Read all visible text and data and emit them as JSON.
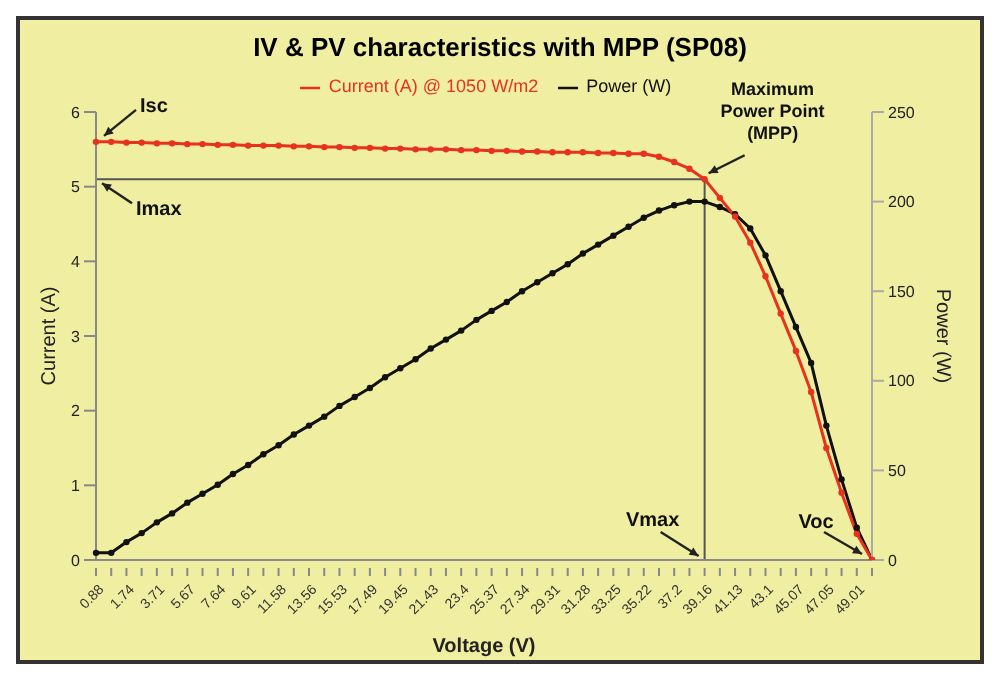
{
  "chart_data": {
    "type": "line",
    "title": "IV & PV characteristics with MPP (SP08)",
    "xlabel": "Voltage (V)",
    "ylabel": "Current (A)",
    "y2label": "Power (W)",
    "categories": [
      "0.88",
      null,
      "1.74",
      null,
      "3.71",
      null,
      "5.67",
      null,
      "7.64",
      null,
      "9.61",
      null,
      "11.58",
      null,
      "13.56",
      null,
      "15.53",
      null,
      "17.49",
      null,
      "19.45",
      null,
      "21.43",
      null,
      "23.4",
      null,
      "25.37",
      null,
      "27.34",
      null,
      "29.31",
      null,
      "31.28",
      null,
      "33.25",
      null,
      "35.22",
      null,
      "37.2",
      null,
      "39.16",
      null,
      "41.13",
      null,
      "43.1",
      null,
      "45.07",
      null,
      "47.05",
      null,
      "49.01",
      null
    ],
    "series": [
      {
        "name": "Current (A) @ 1050 W/m2",
        "color": "#e8321e",
        "values": [
          5.6,
          5.6,
          5.59,
          5.59,
          5.58,
          5.58,
          5.57,
          5.57,
          5.56,
          5.56,
          5.55,
          5.55,
          5.55,
          5.54,
          5.54,
          5.53,
          5.53,
          5.52,
          5.52,
          5.51,
          5.51,
          5.5,
          5.5,
          5.5,
          5.49,
          5.49,
          5.48,
          5.48,
          5.47,
          5.47,
          5.46,
          5.46,
          5.46,
          5.45,
          5.45,
          5.44,
          5.44,
          5.4,
          5.33,
          5.24,
          5.1,
          4.85,
          4.6,
          4.25,
          3.8,
          3.3,
          2.8,
          2.25,
          1.5,
          0.9,
          0.35,
          0
        ]
      },
      {
        "name": "Power (W)",
        "color": "#111111",
        "axis": "y2",
        "values": [
          4,
          4,
          10,
          15,
          21,
          26,
          32,
          37,
          42,
          48,
          53,
          59,
          64,
          70,
          75,
          80,
          86,
          91,
          96,
          102,
          107,
          112,
          118,
          123,
          128,
          134,
          139,
          144,
          150,
          155,
          160,
          165,
          171,
          176,
          181,
          186,
          191,
          195,
          198,
          200,
          200,
          197,
          193,
          185,
          170,
          150,
          130,
          110,
          75,
          45,
          18,
          0
        ]
      }
    ],
    "ylim": [
      0,
      6
    ],
    "yticks": [
      0,
      1,
      2,
      3,
      4,
      5,
      6
    ],
    "y2lim": [
      0,
      250
    ],
    "y2ticks": [
      0,
      50,
      100,
      150,
      200,
      250
    ],
    "ref_lines": [
      {
        "axis": "x",
        "value": "39.16",
        "label": "Vmax",
        "color": "#555555"
      },
      {
        "axis": "y",
        "value": 5.1,
        "label": "Imax",
        "color": "#555555"
      }
    ],
    "annotations": [
      {
        "text": "Isc",
        "x": "0.88",
        "y": 5.6
      },
      {
        "text": "Maximum Power Point (MPP)",
        "x": "39.16",
        "y": 5.1
      },
      "Voc"
    ],
    "legend": "top",
    "marker": "circle",
    "grid": false
  }
}
